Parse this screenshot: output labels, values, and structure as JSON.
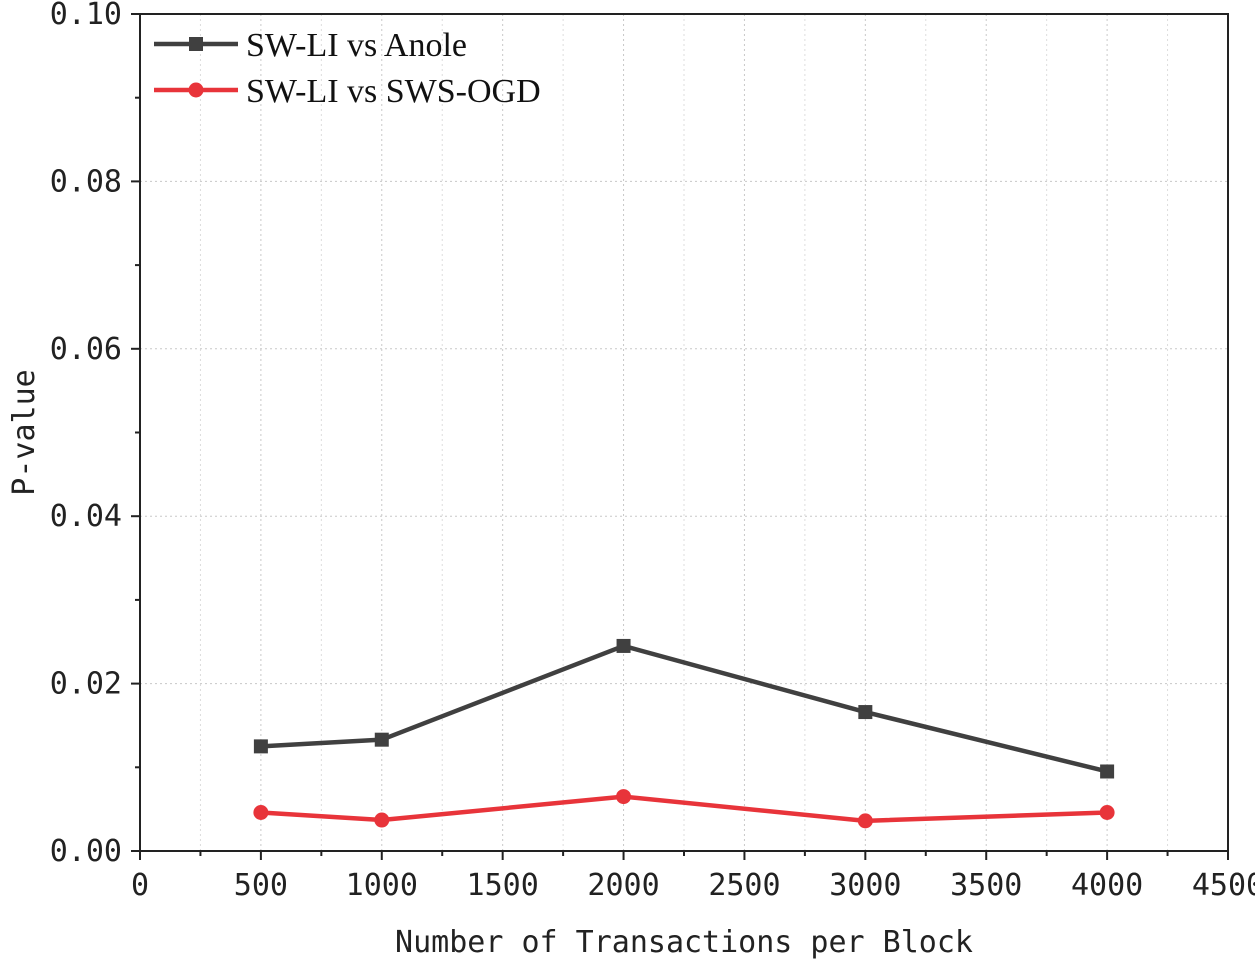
{
  "chart_data": {
    "type": "line",
    "title": "",
    "xlabel": "Number of Transactions per Block",
    "ylabel": "P-value",
    "xlim": [
      0,
      4500
    ],
    "ylim": [
      0,
      0.1
    ],
    "x_ticks": [
      0,
      500,
      1000,
      1500,
      2000,
      2500,
      3000,
      3500,
      4000,
      4500
    ],
    "x_tick_labels": [
      "0",
      "500",
      "1000",
      "1500",
      "2000",
      "2500",
      "3000",
      "3500",
      "4000",
      "4500"
    ],
    "y_ticks": [
      0,
      0.02,
      0.04,
      0.06,
      0.08,
      0.1
    ],
    "y_tick_labels": [
      "0.00",
      "0.02",
      "0.04",
      "0.06",
      "0.08",
      "0.10"
    ],
    "grid": true,
    "legend_position": "top-left",
    "x": [
      500,
      1000,
      2000,
      3000,
      4000
    ],
    "series": [
      {
        "name": "SW-LI vs Anole",
        "color": "#404040",
        "marker": "square",
        "values": [
          0.0125,
          0.0133,
          0.0245,
          0.0166,
          0.0095
        ]
      },
      {
        "name": "SW-LI vs SWS-OGD",
        "color": "#e8343a",
        "marker": "circle",
        "values": [
          0.0046,
          0.0037,
          0.0065,
          0.0036,
          0.0046
        ]
      }
    ]
  }
}
